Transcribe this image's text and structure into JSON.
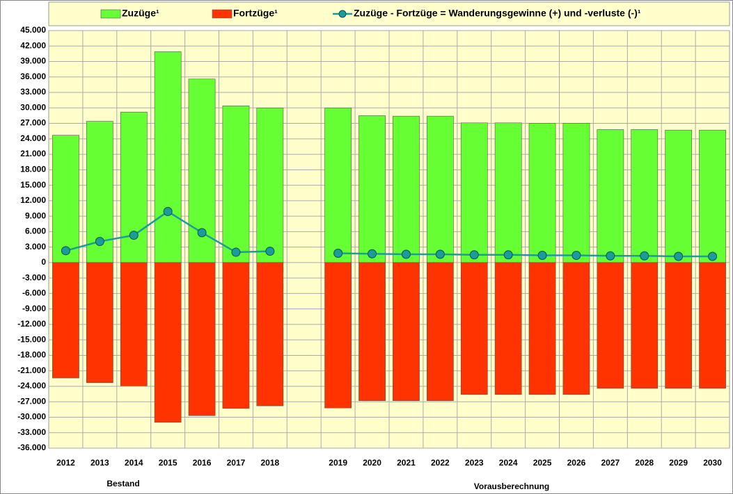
{
  "chart_data": {
    "type": "bar",
    "categories": [
      "2012",
      "2013",
      "2014",
      "2015",
      "2016",
      "2017",
      "2018",
      null,
      "2019",
      "2020",
      "2021",
      "2022",
      "2023",
      "2024",
      "2025",
      "2026",
      "2027",
      "2028",
      "2029",
      "2030"
    ],
    "series": [
      {
        "name": "Zuzüge¹",
        "color": "#66ff33",
        "values": [
          24700,
          27400,
          29200,
          40900,
          35600,
          30400,
          30000,
          null,
          30000,
          28500,
          28400,
          28400,
          27100,
          27100,
          27000,
          27000,
          25800,
          25800,
          25700,
          25700
        ]
      },
      {
        "name": "Fortzüge¹",
        "color": "#ff3300",
        "values": [
          -22400,
          -23300,
          -23900,
          -31000,
          -29700,
          -28300,
          -27800,
          null,
          -28200,
          -26800,
          -26800,
          -26800,
          -25600,
          -25600,
          -25600,
          -25600,
          -24400,
          -24400,
          -24400,
          -24400
        ]
      },
      {
        "name": "Zuzüge - Fortzüge = Wanderungsgewinne (+) und -verluste (-)¹",
        "color": "#1a9c9c",
        "type": "line",
        "values": [
          2300,
          4100,
          5300,
          9900,
          5800,
          2000,
          2200,
          null,
          1800,
          1700,
          1600,
          1600,
          1500,
          1500,
          1400,
          1400,
          1300,
          1300,
          1200,
          1200
        ]
      }
    ],
    "annotations": [
      "Bestand",
      "Vorausberechnung"
    ],
    "ylim": [
      -36000,
      45000
    ],
    "yticks": [
      {
        "value": 45000,
        "label": "45.000"
      },
      {
        "value": 42000,
        "label": "42.000"
      },
      {
        "value": 39000,
        "label": "39.000"
      },
      {
        "value": 36000,
        "label": "36.000"
      },
      {
        "value": 33000,
        "label": "33.000"
      },
      {
        "value": 30000,
        "label": "30.000"
      },
      {
        "value": 27000,
        "label": "27.000"
      },
      {
        "value": 24000,
        "label": "24.000"
      },
      {
        "value": 21000,
        "label": "21.000"
      },
      {
        "value": 18000,
        "label": "18.000"
      },
      {
        "value": 15000,
        "label": "15.000"
      },
      {
        "value": 12000,
        "label": "12.000"
      },
      {
        "value": 9000,
        "label": "9.000"
      },
      {
        "value": 6000,
        "label": "6.000"
      },
      {
        "value": 3000,
        "label": "3.000"
      },
      0,
      {
        "value": -3000,
        "label": "-3.000"
      },
      {
        "value": -6000,
        "label": "-6.000"
      },
      {
        "value": -9000,
        "label": "-9.000"
      },
      {
        "value": -12000,
        "label": "-12.000"
      },
      {
        "value": -15000,
        "label": "-15.000"
      },
      {
        "value": -18000,
        "label": "-18.000"
      },
      {
        "value": -21000,
        "label": "-21.000"
      },
      {
        "value": -24000,
        "label": "-24.000"
      },
      {
        "value": -27000,
        "label": "-27.000"
      },
      {
        "value": -30000,
        "label": "-30.000"
      },
      {
        "value": -33000,
        "label": "-33.000"
      },
      {
        "value": -36000,
        "label": "-36.000"
      }
    ],
    "grid": true
  }
}
